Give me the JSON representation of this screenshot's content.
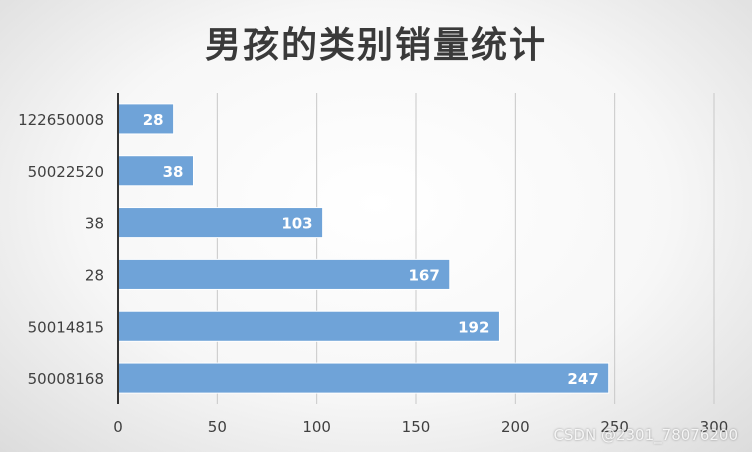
{
  "watermark": "CSDN @2301_78076200",
  "colors": {
    "bar": "#6fa3d8",
    "bar_stroke": "#ffffff",
    "grid": "#c8c8c8",
    "axis": "#333333",
    "label_text": "#ffffff",
    "tick_text": "#404040"
  },
  "chart_data": {
    "type": "bar",
    "orientation": "horizontal",
    "title": "男孩的类别销量统计",
    "categories": [
      "50008168",
      "50014815",
      "28",
      "38",
      "50022520",
      "122650008"
    ],
    "values": [
      247,
      192,
      167,
      103,
      38,
      28
    ],
    "xlim": [
      0,
      300
    ],
    "xticks": [
      "0",
      "50",
      "100",
      "150",
      "200",
      "250",
      "300"
    ],
    "grid": true,
    "data_labels": true,
    "legend": "none"
  }
}
